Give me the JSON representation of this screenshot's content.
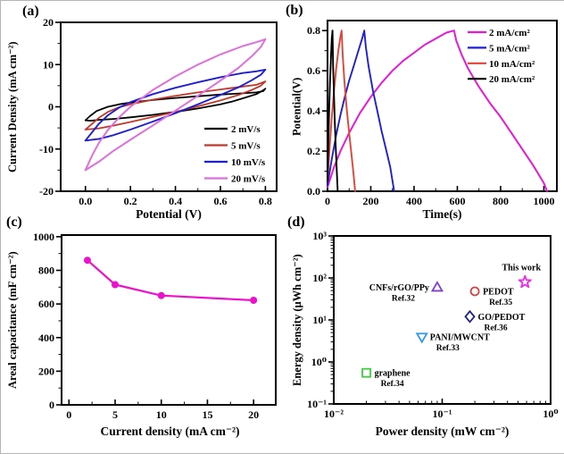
{
  "figure": {
    "panel_labels": {
      "a": "(a)",
      "b": "(b)",
      "c": "(c)",
      "d": "(d)"
    }
  },
  "chart_data": [
    {
      "id": "a",
      "type": "line",
      "description": "Cyclic voltammetry curves at different scan rates",
      "xlabel": "Potential (V)",
      "ylabel": "Current Density (mA cm⁻²)",
      "xscale": "linear",
      "yscale": "linear",
      "xlim": [
        -0.11,
        0.85
      ],
      "ylim": [
        -20,
        20
      ],
      "xticks": {
        "values": [
          0.0,
          0.2,
          0.4,
          0.6,
          0.8
        ],
        "labels": [
          "0.0",
          "0.2",
          "0.4",
          "0.6",
          "0.8"
        ]
      },
      "yticks": {
        "values": [
          -20,
          -10,
          0,
          10,
          20
        ],
        "labels": [
          "-20",
          "-10",
          "0",
          "10",
          "20"
        ]
      },
      "xminor_step": 0.1,
      "yminor_step": 5,
      "legend": {
        "position": "bottom-right",
        "entries": [
          {
            "label": "2 mV/s",
            "color": "#000000"
          },
          {
            "label": "5 mV/s",
            "color": "#c0392b"
          },
          {
            "label": "10 mV/s",
            "color": "#1f1fd0"
          },
          {
            "label": "20 mV/s",
            "color": "#de6fdc"
          }
        ]
      },
      "series": [
        {
          "name": "2 mV/s",
          "color": "#000000",
          "lw": 1.8,
          "points": [
            [
              0,
              -3.2
            ],
            [
              0.02,
              -2.2
            ],
            [
              0.05,
              -1.0
            ],
            [
              0.1,
              0.0
            ],
            [
              0.15,
              0.6
            ],
            [
              0.2,
              1.0
            ],
            [
              0.3,
              1.6
            ],
            [
              0.4,
              2.1
            ],
            [
              0.5,
              2.5
            ],
            [
              0.6,
              2.9
            ],
            [
              0.7,
              3.2
            ],
            [
              0.76,
              3.4
            ],
            [
              0.79,
              3.7
            ],
            [
              0.8,
              4.3
            ],
            [
              0.79,
              3.9
            ],
            [
              0.76,
              3.0
            ],
            [
              0.7,
              2.0
            ],
            [
              0.65,
              1.2
            ],
            [
              0.6,
              0.6
            ],
            [
              0.5,
              -0.4
            ],
            [
              0.4,
              -1.2
            ],
            [
              0.3,
              -1.9
            ],
            [
              0.2,
              -2.5
            ],
            [
              0.12,
              -2.9
            ],
            [
              0.06,
              -3.1
            ],
            [
              0.02,
              -3.3
            ],
            [
              0,
              -3.2
            ]
          ]
        },
        {
          "name": "5 mV/s",
          "color": "#c0392b",
          "lw": 1.8,
          "points": [
            [
              0,
              -5.4
            ],
            [
              0.03,
              -4.0
            ],
            [
              0.06,
              -2.6
            ],
            [
              0.1,
              -1.2
            ],
            [
              0.15,
              -0.1
            ],
            [
              0.2,
              0.6
            ],
            [
              0.3,
              1.7
            ],
            [
              0.4,
              2.6
            ],
            [
              0.5,
              3.4
            ],
            [
              0.6,
              4.1
            ],
            [
              0.7,
              4.8
            ],
            [
              0.76,
              5.2
            ],
            [
              0.8,
              6.0
            ],
            [
              0.78,
              5.0
            ],
            [
              0.74,
              4.0
            ],
            [
              0.68,
              2.8
            ],
            [
              0.6,
              1.5
            ],
            [
              0.5,
              0.1
            ],
            [
              0.4,
              -1.2
            ],
            [
              0.3,
              -2.4
            ],
            [
              0.2,
              -3.6
            ],
            [
              0.12,
              -4.5
            ],
            [
              0.06,
              -5.1
            ],
            [
              0,
              -5.4
            ]
          ]
        },
        {
          "name": "10 mV/s",
          "color": "#1f1fd0",
          "lw": 1.9,
          "points": [
            [
              0,
              -8.0
            ],
            [
              0.03,
              -6.0
            ],
            [
              0.06,
              -4.0
            ],
            [
              0.1,
              -2.0
            ],
            [
              0.15,
              -0.2
            ],
            [
              0.2,
              1.1
            ],
            [
              0.3,
              3.0
            ],
            [
              0.4,
              4.5
            ],
            [
              0.5,
              5.8
            ],
            [
              0.6,
              7.0
            ],
            [
              0.7,
              8.0
            ],
            [
              0.76,
              8.4
            ],
            [
              0.8,
              8.8
            ],
            [
              0.78,
              7.6
            ],
            [
              0.74,
              6.3
            ],
            [
              0.68,
              4.6
            ],
            [
              0.6,
              2.8
            ],
            [
              0.5,
              0.6
            ],
            [
              0.4,
              -1.5
            ],
            [
              0.3,
              -3.5
            ],
            [
              0.2,
              -5.4
            ],
            [
              0.12,
              -6.8
            ],
            [
              0.06,
              -7.6
            ],
            [
              0,
              -8.0
            ]
          ]
        },
        {
          "name": "20 mV/s",
          "color": "#de6fdc",
          "lw": 2.0,
          "points": [
            [
              0,
              -15.0
            ],
            [
              0.03,
              -11.5
            ],
            [
              0.06,
              -8.5
            ],
            [
              0.1,
              -5.5
            ],
            [
              0.15,
              -2.5
            ],
            [
              0.2,
              0.0
            ],
            [
              0.3,
              4.0
            ],
            [
              0.4,
              7.2
            ],
            [
              0.5,
              10.0
            ],
            [
              0.6,
              12.4
            ],
            [
              0.7,
              14.4
            ],
            [
              0.76,
              15.3
            ],
            [
              0.8,
              16.0
            ],
            [
              0.78,
              14.2
            ],
            [
              0.74,
              12.0
            ],
            [
              0.68,
              9.2
            ],
            [
              0.6,
              6.2
            ],
            [
              0.5,
              2.6
            ],
            [
              0.4,
              -0.9
            ],
            [
              0.3,
              -4.4
            ],
            [
              0.2,
              -7.8
            ],
            [
              0.12,
              -10.6
            ],
            [
              0.06,
              -13.0
            ],
            [
              0,
              -15.0
            ]
          ]
        }
      ]
    },
    {
      "id": "b",
      "type": "line",
      "description": "Galvanostatic charge-discharge curves at different current densities",
      "xlabel": "Time(s)",
      "ylabel": "Potential(V)",
      "xscale": "linear",
      "yscale": "linear",
      "xlim": [
        0,
        1060
      ],
      "ylim": [
        0,
        0.85
      ],
      "xticks": {
        "values": [
          0,
          200,
          400,
          600,
          800,
          1000
        ],
        "labels": [
          "0",
          "200",
          "400",
          "600",
          "800",
          "1000"
        ]
      },
      "yticks": {
        "values": [
          0.0,
          0.2,
          0.4,
          0.6,
          0.8
        ],
        "labels": [
          "0.0",
          "0.2",
          "0.4",
          "0.6",
          "0.8"
        ]
      },
      "xminor_step": 100,
      "yminor_step": 0.1,
      "legend": {
        "position": "top-right",
        "entries": [
          {
            "label": "2 mA/cm²",
            "color": "#e619d8"
          },
          {
            "label": "5 mA/cm²",
            "color": "#1f1fd0"
          },
          {
            "label": "10 mA/cm²",
            "color": "#e04438"
          },
          {
            "label": "20 mA/cm²",
            "color": "#000000"
          }
        ]
      },
      "series": [
        {
          "name": "2 mA/cm²",
          "color": "#e619d8",
          "lw": 2.0,
          "points": [
            [
              0,
              0.02
            ],
            [
              30,
              0.12
            ],
            [
              60,
              0.2
            ],
            [
              100,
              0.29
            ],
            [
              150,
              0.39
            ],
            [
              200,
              0.47
            ],
            [
              250,
              0.54
            ],
            [
              300,
              0.6
            ],
            [
              350,
              0.65
            ],
            [
              400,
              0.69
            ],
            [
              450,
              0.73
            ],
            [
              500,
              0.76
            ],
            [
              550,
              0.79
            ],
            [
              585,
              0.8
            ],
            [
              595,
              0.75
            ],
            [
              620,
              0.68
            ],
            [
              650,
              0.61
            ],
            [
              700,
              0.52
            ],
            [
              750,
              0.44
            ],
            [
              800,
              0.37
            ],
            [
              850,
              0.29
            ],
            [
              900,
              0.21
            ],
            [
              950,
              0.13
            ],
            [
              1000,
              0.04
            ],
            [
              1015,
              0.0
            ]
          ]
        },
        {
          "name": "5 mA/cm²",
          "color": "#1f1fd0",
          "lw": 1.9,
          "points": [
            [
              0,
              0.03
            ],
            [
              20,
              0.16
            ],
            [
              40,
              0.28
            ],
            [
              60,
              0.38
            ],
            [
              80,
              0.47
            ],
            [
              100,
              0.55
            ],
            [
              120,
              0.62
            ],
            [
              140,
              0.69
            ],
            [
              160,
              0.76
            ],
            [
              170,
              0.8
            ],
            [
              177,
              0.72
            ],
            [
              190,
              0.62
            ],
            [
              210,
              0.5
            ],
            [
              230,
              0.4
            ],
            [
              250,
              0.3
            ],
            [
              270,
              0.21
            ],
            [
              290,
              0.12
            ],
            [
              308,
              0.0
            ]
          ]
        },
        {
          "name": "10 mA/cm²",
          "color": "#e04438",
          "lw": 1.9,
          "points": [
            [
              0,
              0.05
            ],
            [
              10,
              0.22
            ],
            [
              20,
              0.37
            ],
            [
              30,
              0.5
            ],
            [
              40,
              0.61
            ],
            [
              50,
              0.7
            ],
            [
              60,
              0.77
            ],
            [
              65,
              0.8
            ],
            [
              70,
              0.68
            ],
            [
              78,
              0.55
            ],
            [
              88,
              0.42
            ],
            [
              98,
              0.31
            ],
            [
              108,
              0.21
            ],
            [
              118,
              0.11
            ],
            [
              128,
              0.0
            ]
          ]
        },
        {
          "name": "20 mA/cm²",
          "color": "#000000",
          "lw": 1.9,
          "points": [
            [
              0,
              0.05
            ],
            [
              4,
              0.25
            ],
            [
              8,
              0.42
            ],
            [
              12,
              0.56
            ],
            [
              16,
              0.67
            ],
            [
              20,
              0.76
            ],
            [
              23,
              0.8
            ],
            [
              26,
              0.62
            ],
            [
              30,
              0.47
            ],
            [
              34,
              0.34
            ],
            [
              38,
              0.22
            ],
            [
              43,
              0.1
            ],
            [
              47,
              0.0
            ]
          ]
        }
      ]
    },
    {
      "id": "c",
      "type": "line",
      "description": "Areal capacitance versus current density",
      "xlabel": "Current density (mA cm⁻²)",
      "ylabel": "Areal capacitance (mF cm⁻²)",
      "xscale": "linear",
      "yscale": "linear",
      "xlim": [
        -0.8,
        22.4
      ],
      "ylim": [
        0,
        1010
      ],
      "xticks": {
        "values": [
          0,
          5,
          10,
          15,
          20
        ],
        "labels": [
          "0",
          "5",
          "10",
          "15",
          "20"
        ]
      },
      "yticks": {
        "values": [
          0,
          200,
          400,
          600,
          800,
          1000
        ],
        "labels": [
          "0",
          "200",
          "400",
          "600",
          "800",
          "1000"
        ]
      },
      "xminor_step": 2.5,
      "yminor_step": 100,
      "series": [
        {
          "name": "areal capacitance",
          "color": "#ee11cc",
          "lw": 2.2,
          "marker": "circle-filled",
          "marker_r": 4,
          "points": [
            [
              2,
              860
            ],
            [
              5,
              715
            ],
            [
              10,
              650
            ],
            [
              20,
              622
            ]
          ]
        }
      ]
    },
    {
      "id": "d",
      "type": "scatter",
      "description": "Ragone plot comparing energy/power density with references",
      "xlabel": "Power density (mW cm⁻²)",
      "ylabel": "Energy density (μWh cm⁻²)",
      "xscale": "log",
      "yscale": "log",
      "xlim": [
        0.01,
        1
      ],
      "ylim": [
        0.1,
        1000
      ],
      "xticks": {
        "values": [
          0.01,
          0.1,
          1
        ],
        "labels": [
          "10⁻²",
          "10⁻¹",
          "10⁰"
        ]
      },
      "yticks": {
        "values": [
          0.1,
          1,
          10,
          100,
          1000
        ],
        "labels": [
          "10⁻¹",
          "10⁰",
          "10¹",
          "10²",
          "10³"
        ]
      },
      "points": [
        {
          "name": "graphene",
          "ref": "Ref.34",
          "x": 0.02,
          "y": 0.55,
          "color": "#3ecf3e",
          "marker": "square",
          "label_side": "right"
        },
        {
          "name": "PANI/MWCNT",
          "ref": "Ref.33",
          "x": 0.065,
          "y": 3.9,
          "color": "#2f9ae8",
          "marker": "triangle-down",
          "label_side": "right"
        },
        {
          "name": "CNFs/rGO/PPy",
          "ref": "Ref.32",
          "x": 0.09,
          "y": 60,
          "color": "#7d3fd1",
          "marker": "triangle-up",
          "label_side": "left"
        },
        {
          "name": "PEDOT",
          "ref": "Ref.35",
          "x": 0.2,
          "y": 48,
          "color": "#d94040",
          "marker": "circle",
          "label_side": "right"
        },
        {
          "name": "GO/PEDOT",
          "ref": "Ref.36",
          "x": 0.18,
          "y": 12,
          "color": "#20208c",
          "marker": "diamond",
          "label_side": "right"
        },
        {
          "name": "This work",
          "ref": "",
          "x": 0.58,
          "y": 80,
          "color": "#e82ee8",
          "marker": "star",
          "label_side": "above"
        }
      ]
    }
  ]
}
